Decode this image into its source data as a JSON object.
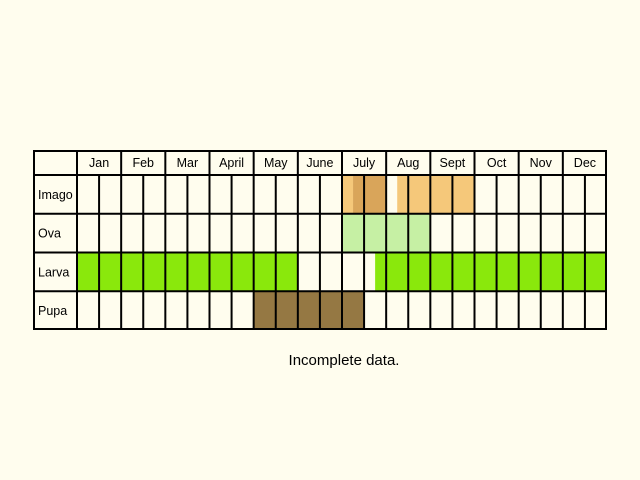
{
  "months": [
    "Jan",
    "Feb",
    "Mar",
    "April",
    "May",
    "June",
    "July",
    "Aug",
    "Sept",
    "Oct",
    "Nov",
    "Dec"
  ],
  "stages": [
    {
      "name": "Imago",
      "key": "imago",
      "bands": [
        {
          "start": 6.0,
          "end": 6.25,
          "color": "#f5c87a"
        },
        {
          "start": 6.25,
          "end": 7.0,
          "color": "#d9a55a"
        },
        {
          "start": 7.25,
          "end": 8.0,
          "color": "#f5c87a"
        },
        {
          "start": 8.0,
          "end": 9.0,
          "color": "#f5c87a"
        }
      ]
    },
    {
      "name": "Ova",
      "key": "ova",
      "bands": [
        {
          "start": 6.0,
          "end": 8.0,
          "color": "#c6f0a4"
        }
      ]
    },
    {
      "name": "Larva",
      "key": "larva",
      "bands": [
        {
          "start": 0.0,
          "end": 5.0,
          "color": "#8ae80c"
        },
        {
          "start": 6.75,
          "end": 12.0,
          "color": "#8ae80c"
        }
      ]
    },
    {
      "name": "Pupa",
      "key": "pupa",
      "bands": [
        {
          "start": 4.0,
          "end": 6.5,
          "color": "#957843"
        }
      ]
    }
  ],
  "note": "Incomplete data."
}
